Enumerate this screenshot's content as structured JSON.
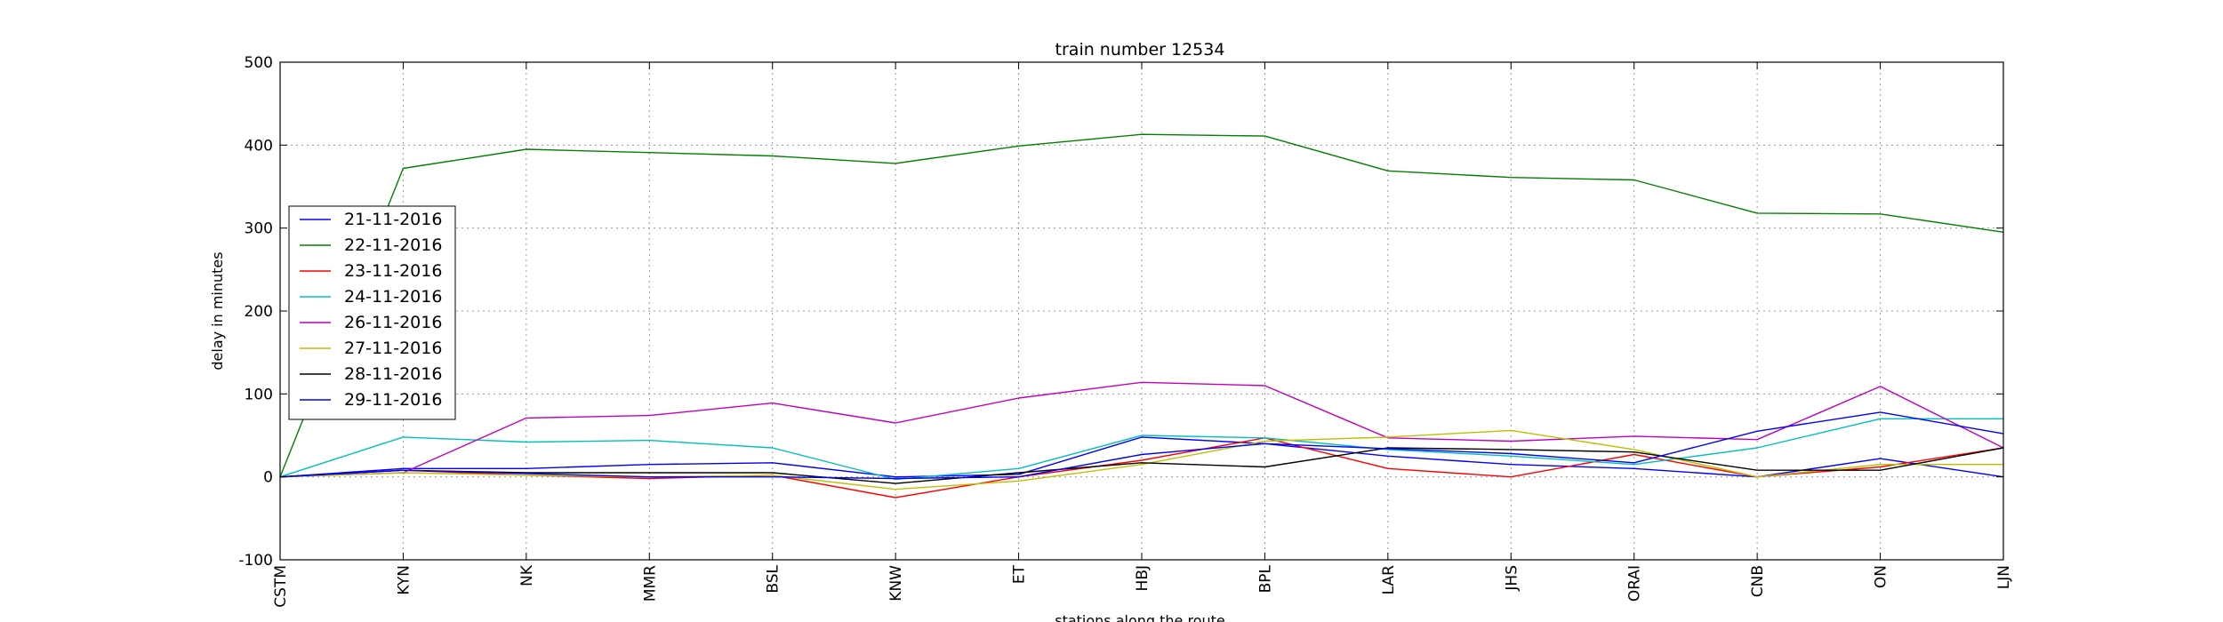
{
  "chart_data": {
    "type": "line",
    "title": "train number 12534",
    "xlabel": "stations along the route",
    "ylabel": "delay in minutes",
    "categories": [
      "CSTM",
      "KYN",
      "NK",
      "MMR",
      "BSL",
      "KNW",
      "ET",
      "HBJ",
      "BPL",
      "LAR",
      "JHS",
      "ORAI",
      "CNB",
      "ON",
      "LJN"
    ],
    "ylim": [
      -100,
      500
    ],
    "yticks": [
      -100,
      0,
      100,
      200,
      300,
      400,
      500
    ],
    "grid": true,
    "legend_position": "left",
    "series": [
      {
        "name": "21-11-2016",
        "color": "#0000ff",
        "values": [
          0,
          10,
          10,
          15,
          17,
          0,
          3,
          48,
          40,
          25,
          15,
          10,
          0,
          22,
          0
        ]
      },
      {
        "name": "22-11-2016",
        "color": "#008000",
        "values": [
          0,
          372,
          395,
          391,
          387,
          378,
          399,
          413,
          411,
          369,
          361,
          358,
          318,
          317,
          295
        ]
      },
      {
        "name": "23-11-2016",
        "color": "#ff0000",
        "values": [
          0,
          8,
          2,
          -2,
          2,
          -25,
          0,
          20,
          47,
          10,
          0,
          27,
          0,
          12,
          35
        ]
      },
      {
        "name": "24-11-2016",
        "color": "#00bfbf",
        "values": [
          0,
          48,
          42,
          44,
          35,
          -3,
          10,
          50,
          47,
          33,
          25,
          15,
          35,
          70,
          70
        ]
      },
      {
        "name": "26-11-2016",
        "color": "#bf00bf",
        "values": [
          0,
          5,
          71,
          74,
          89,
          65,
          95,
          114,
          110,
          47,
          43,
          49,
          45,
          109,
          35
        ]
      },
      {
        "name": "27-11-2016",
        "color": "#bfbf00",
        "values": [
          0,
          5,
          2,
          0,
          2,
          -15,
          -5,
          15,
          43,
          48,
          56,
          33,
          0,
          15,
          15
        ]
      },
      {
        "name": "28-11-2016",
        "color": "#000000",
        "values": [
          0,
          8,
          5,
          5,
          5,
          -8,
          5,
          17,
          12,
          35,
          33,
          30,
          8,
          8,
          35
        ]
      },
      {
        "name": "29-11-2016",
        "color": "#0000ff",
        "values": [
          0,
          8,
          4,
          0,
          0,
          -2,
          0,
          27,
          40,
          34,
          28,
          17,
          55,
          78,
          52
        ]
      }
    ]
  }
}
